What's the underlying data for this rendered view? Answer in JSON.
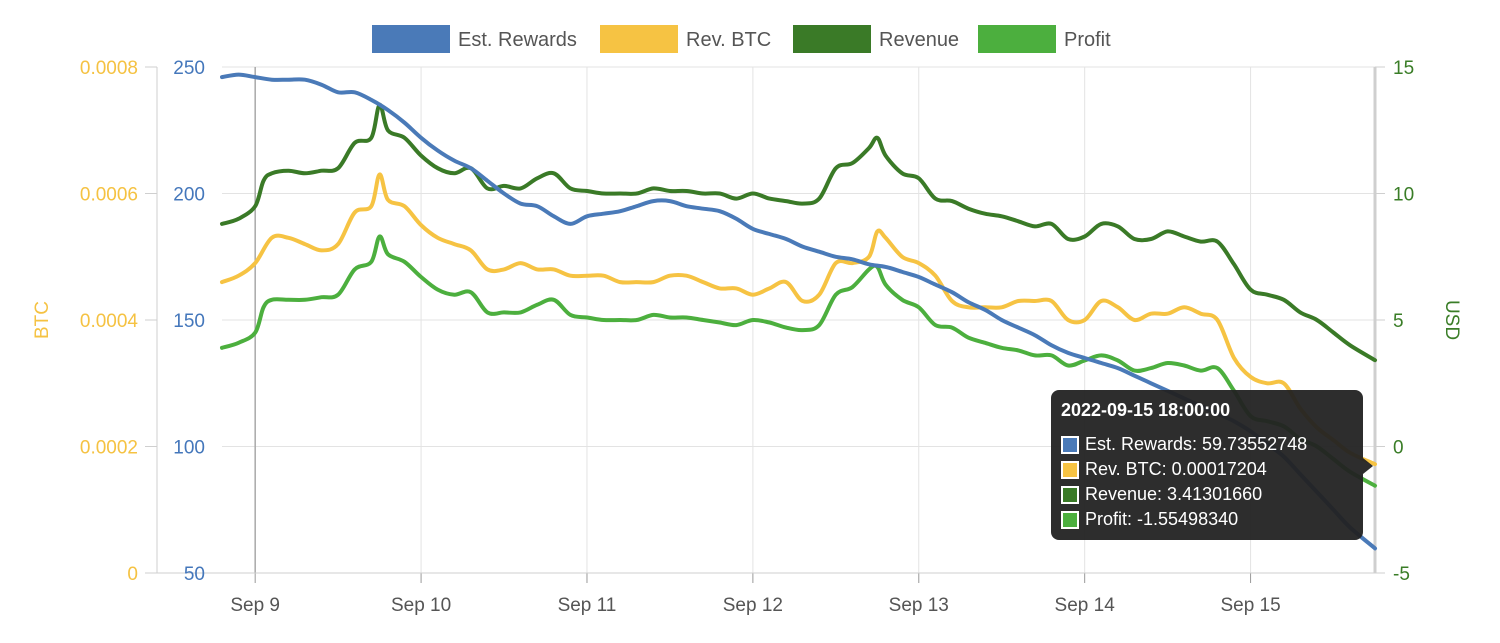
{
  "chart_data": {
    "type": "line",
    "x_ticks": [
      "Sep 9",
      "Sep 10",
      "Sep 11",
      "Sep 12",
      "Sep 13",
      "Sep 14",
      "Sep 15"
    ],
    "x_range": [
      8.8,
      15.75
    ],
    "axes": {
      "left_outer": {
        "label": "BTC",
        "color": "#F5C242",
        "ticks": [
          "0",
          "0.0002",
          "0.0004",
          "0.0006",
          "0.0008"
        ],
        "range": [
          0,
          0.0008
        ]
      },
      "left_inner": {
        "label": "",
        "color": "#4477BB",
        "ticks": [
          "50",
          "100",
          "150",
          "200",
          "250"
        ],
        "range": [
          50,
          250
        ]
      },
      "right": {
        "label": "USD",
        "color": "#3A7D27",
        "ticks": [
          "-5",
          "0",
          "5",
          "10",
          "15"
        ],
        "range": [
          -5,
          15
        ]
      }
    },
    "legend": {
      "placement": "top-center"
    },
    "grid": true,
    "series": [
      {
        "name": "Est. Rewards",
        "color": "#4A7AB8",
        "axis": "left_inner",
        "x": [
          8.8,
          8.9,
          9.0,
          9.1,
          9.2,
          9.3,
          9.4,
          9.5,
          9.6,
          9.7,
          9.8,
          9.9,
          10.0,
          10.1,
          10.2,
          10.3,
          10.4,
          10.5,
          10.6,
          10.7,
          10.8,
          10.9,
          11.0,
          11.1,
          11.2,
          11.3,
          11.4,
          11.5,
          11.6,
          11.7,
          11.8,
          11.9,
          12.0,
          12.1,
          12.2,
          12.3,
          12.4,
          12.5,
          12.6,
          12.7,
          12.8,
          12.9,
          13.0,
          13.1,
          13.2,
          13.3,
          13.4,
          13.5,
          13.6,
          13.7,
          13.8,
          13.9,
          14.0,
          14.1,
          14.2,
          14.3,
          14.4,
          14.5,
          14.6,
          14.7,
          14.8,
          14.9,
          15.0,
          15.1,
          15.2,
          15.3,
          15.4,
          15.5,
          15.6,
          15.75
        ],
        "values": [
          246,
          247,
          246,
          245,
          245,
          245,
          243,
          240,
          240,
          237,
          233,
          228,
          222,
          217,
          213,
          210,
          205,
          200,
          196,
          195,
          191,
          188,
          191,
          192,
          193,
          195,
          197,
          197,
          195,
          194,
          193,
          190,
          186,
          184,
          182,
          179,
          177,
          175,
          174,
          172,
          171,
          169,
          167,
          164,
          161,
          157,
          154,
          150,
          147,
          144,
          140,
          137,
          135,
          133,
          131,
          128,
          125,
          122,
          119,
          116,
          113,
          110,
          106,
          101,
          96,
          89,
          82,
          75,
          68,
          59.74
        ]
      },
      {
        "name": "Rev. BTC",
        "color": "#F6C343",
        "axis": "left_outer",
        "x": [
          8.8,
          8.9,
          9.0,
          9.1,
          9.2,
          9.3,
          9.4,
          9.5,
          9.6,
          9.7,
          9.75,
          9.8,
          9.9,
          10.0,
          10.1,
          10.2,
          10.3,
          10.4,
          10.5,
          10.6,
          10.7,
          10.8,
          10.9,
          11.0,
          11.1,
          11.2,
          11.3,
          11.4,
          11.5,
          11.6,
          11.7,
          11.8,
          11.9,
          12.0,
          12.1,
          12.2,
          12.3,
          12.4,
          12.5,
          12.6,
          12.7,
          12.75,
          12.8,
          12.9,
          13.0,
          13.1,
          13.2,
          13.3,
          13.4,
          13.5,
          13.6,
          13.7,
          13.8,
          13.9,
          14.0,
          14.1,
          14.2,
          14.3,
          14.4,
          14.5,
          14.6,
          14.7,
          14.8,
          14.9,
          15.0,
          15.1,
          15.2,
          15.3,
          15.4,
          15.5,
          15.6,
          15.75
        ],
        "values": [
          0.00046,
          0.00047,
          0.00049,
          0.00053,
          0.00053,
          0.00052,
          0.00051,
          0.00052,
          0.00057,
          0.00058,
          0.00063,
          0.00059,
          0.00058,
          0.00055,
          0.00053,
          0.00052,
          0.00051,
          0.00048,
          0.00048,
          0.00049,
          0.00048,
          0.00048,
          0.00047,
          0.00047,
          0.00047,
          0.00046,
          0.00046,
          0.00046,
          0.00047,
          0.00047,
          0.00046,
          0.00045,
          0.00045,
          0.00044,
          0.00045,
          0.00046,
          0.00043,
          0.00044,
          0.00049,
          0.00049,
          0.0005,
          0.00054,
          0.00053,
          0.0005,
          0.00049,
          0.00047,
          0.00043,
          0.00042,
          0.00042,
          0.00042,
          0.00043,
          0.00043,
          0.00043,
          0.0004,
          0.0004,
          0.00043,
          0.00042,
          0.0004,
          0.00041,
          0.00041,
          0.00042,
          0.00041,
          0.0004,
          0.00034,
          0.00031,
          0.0003,
          0.0003,
          0.00026,
          0.00023,
          0.00021,
          0.00019,
          0.00017204
        ]
      },
      {
        "name": "Revenue",
        "color": "#3A7A27",
        "axis": "right",
        "x": [
          8.8,
          8.9,
          9.0,
          9.05,
          9.1,
          9.2,
          9.3,
          9.4,
          9.5,
          9.6,
          9.7,
          9.75,
          9.8,
          9.9,
          10.0,
          10.1,
          10.2,
          10.3,
          10.4,
          10.5,
          10.6,
          10.7,
          10.8,
          10.9,
          11.0,
          11.1,
          11.2,
          11.3,
          11.4,
          11.5,
          11.6,
          11.7,
          11.8,
          11.9,
          12.0,
          12.1,
          12.2,
          12.3,
          12.4,
          12.5,
          12.6,
          12.7,
          12.75,
          12.8,
          12.9,
          13.0,
          13.1,
          13.2,
          13.3,
          13.4,
          13.5,
          13.6,
          13.7,
          13.8,
          13.9,
          14.0,
          14.1,
          14.2,
          14.3,
          14.4,
          14.5,
          14.6,
          14.7,
          14.8,
          14.9,
          15.0,
          15.1,
          15.2,
          15.3,
          15.4,
          15.5,
          15.6,
          15.75
        ],
        "values": [
          8.8,
          9.0,
          9.5,
          10.5,
          10.8,
          10.9,
          10.8,
          10.9,
          11.0,
          12.0,
          12.2,
          13.5,
          12.5,
          12.2,
          11.5,
          11.0,
          10.8,
          11.0,
          10.2,
          10.3,
          10.2,
          10.6,
          10.8,
          10.2,
          10.1,
          10.0,
          10.0,
          10.0,
          10.2,
          10.1,
          10.1,
          10.0,
          10.0,
          9.8,
          10.0,
          9.8,
          9.7,
          9.6,
          9.8,
          11.0,
          11.2,
          11.8,
          12.2,
          11.5,
          10.8,
          10.6,
          9.8,
          9.7,
          9.4,
          9.2,
          9.1,
          8.9,
          8.7,
          8.8,
          8.2,
          8.3,
          8.8,
          8.7,
          8.2,
          8.2,
          8.5,
          8.3,
          8.1,
          8.1,
          7.2,
          6.2,
          6.0,
          5.8,
          5.3,
          5.0,
          4.5,
          4.0,
          3.41
        ]
      },
      {
        "name": "Profit",
        "color": "#4CAF3E",
        "axis": "right",
        "x": [
          8.8,
          8.9,
          9.0,
          9.05,
          9.1,
          9.2,
          9.3,
          9.4,
          9.5,
          9.6,
          9.7,
          9.75,
          9.8,
          9.9,
          10.0,
          10.1,
          10.2,
          10.3,
          10.4,
          10.5,
          10.6,
          10.7,
          10.8,
          10.9,
          11.0,
          11.1,
          11.2,
          11.3,
          11.4,
          11.5,
          11.6,
          11.7,
          11.8,
          11.9,
          12.0,
          12.1,
          12.2,
          12.3,
          12.4,
          12.5,
          12.6,
          12.7,
          12.75,
          12.8,
          12.9,
          13.0,
          13.1,
          13.2,
          13.3,
          13.4,
          13.5,
          13.6,
          13.7,
          13.8,
          13.9,
          14.0,
          14.1,
          14.2,
          14.3,
          14.4,
          14.5,
          14.6,
          14.7,
          14.8,
          14.9,
          15.0,
          15.1,
          15.2,
          15.3,
          15.4,
          15.5,
          15.6,
          15.75
        ],
        "values": [
          3.9,
          4.1,
          4.5,
          5.5,
          5.8,
          5.8,
          5.8,
          5.9,
          6.0,
          7.0,
          7.3,
          8.3,
          7.6,
          7.3,
          6.7,
          6.2,
          6.0,
          6.1,
          5.3,
          5.3,
          5.3,
          5.6,
          5.8,
          5.2,
          5.1,
          5.0,
          5.0,
          5.0,
          5.2,
          5.1,
          5.1,
          5.0,
          4.9,
          4.8,
          5.0,
          4.9,
          4.7,
          4.6,
          4.8,
          6.0,
          6.3,
          7.0,
          7.1,
          6.4,
          5.8,
          5.5,
          4.8,
          4.7,
          4.3,
          4.1,
          3.9,
          3.8,
          3.6,
          3.6,
          3.2,
          3.4,
          3.6,
          3.4,
          3.0,
          3.1,
          3.3,
          3.2,
          3.0,
          3.1,
          2.2,
          1.2,
          1.0,
          0.8,
          0.3,
          0.0,
          -0.5,
          -1.0,
          -1.55
        ]
      }
    ]
  },
  "tooltip": {
    "title": "2022-09-15 18:00:00",
    "rows": [
      {
        "label": "Est. Rewards: 59.73552748",
        "color": "#4A7AB8"
      },
      {
        "label": "Rev. BTC: 0.00017204",
        "color": "#F6C343"
      },
      {
        "label": "Revenue: 3.41301660",
        "color": "#3A7A27"
      },
      {
        "label": "Profit: -1.55498340",
        "color": "#4CAF3E"
      }
    ]
  }
}
